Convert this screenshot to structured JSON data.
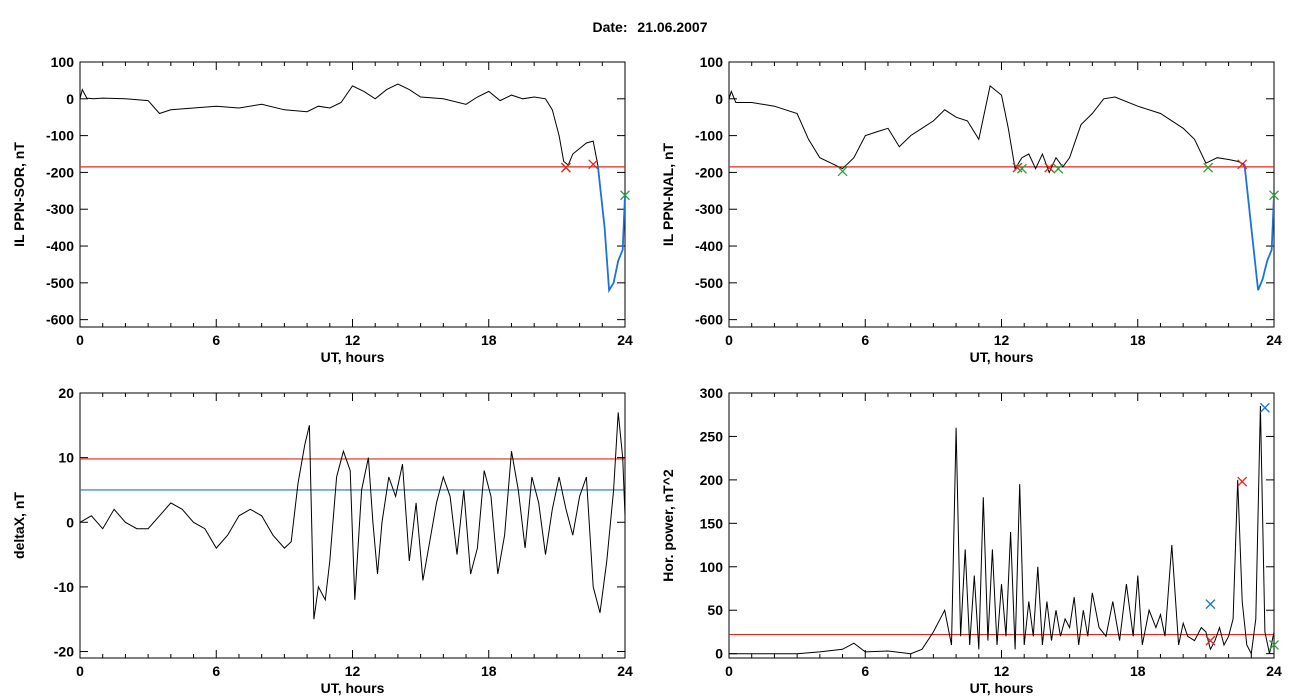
{
  "header": {
    "date_label": "Date:",
    "date_value": "21.06.2007"
  },
  "colors": {
    "red": "#e8261e",
    "blue": "#1a73d9",
    "green": "#2aa33a",
    "black": "#000000"
  },
  "chart_data": [
    {
      "type": "line",
      "title": "",
      "xlabel": "UT, hours",
      "ylabel": "IL PPN-SOR, nT",
      "xlim": [
        0,
        24
      ],
      "ylim": [
        -620,
        100
      ],
      "xticks": [
        0,
        6,
        12,
        18,
        24
      ],
      "yticks": [
        100,
        0,
        -100,
        -200,
        -300,
        -400,
        -500,
        -600
      ],
      "threshold_lines": [
        {
          "y": -185,
          "color": "red"
        }
      ],
      "series": [
        {
          "color": "black",
          "x": [
            0,
            0.1,
            0.3,
            0.6,
            1,
            2,
            3,
            3.5,
            4,
            5,
            6,
            7,
            8,
            9,
            10,
            10.5,
            11,
            11.5,
            12,
            12.5,
            13,
            13.5,
            14,
            14.5,
            15,
            16,
            17,
            17.5,
            18,
            18.5,
            19,
            19.5,
            20,
            20.5,
            20.8,
            21.1,
            21.3,
            21.5,
            21.7,
            22,
            22.3,
            22.6,
            22.8
          ],
          "y": [
            0,
            25,
            2,
            0,
            2,
            0,
            -5,
            -40,
            -30,
            -25,
            -20,
            -25,
            -15,
            -30,
            -35,
            -20,
            -25,
            -10,
            35,
            20,
            0,
            25,
            40,
            25,
            5,
            0,
            -15,
            5,
            20,
            -5,
            10,
            0,
            5,
            0,
            -30,
            -100,
            -170,
            -180,
            -150,
            -135,
            -120,
            -115,
            -180
          ]
        }
      ],
      "highlight_segment": {
        "color": "blue",
        "x": [
          22.8,
          23.1,
          23.3,
          23.5,
          23.7,
          23.9,
          24
        ],
        "y": [
          -180,
          -350,
          -520,
          -500,
          -440,
          -410,
          -260
        ]
      },
      "markers": [
        {
          "x": 21.4,
          "y": -187,
          "color": "green"
        },
        {
          "x": 21.4,
          "y": -187,
          "color": "red"
        },
        {
          "x": 22.6,
          "y": -178,
          "color": "red"
        },
        {
          "x": 24,
          "y": -262,
          "color": "green"
        }
      ]
    },
    {
      "type": "line",
      "title": "",
      "xlabel": "UT, hours",
      "ylabel": "IL PPN-NAL, nT",
      "xlim": [
        0,
        24
      ],
      "ylim": [
        -620,
        100
      ],
      "xticks": [
        0,
        6,
        12,
        18,
        24
      ],
      "yticks": [
        100,
        0,
        -100,
        -200,
        -300,
        -400,
        -500,
        -600
      ],
      "threshold_lines": [
        {
          "y": -185,
          "color": "red"
        }
      ],
      "series": [
        {
          "color": "black",
          "x": [
            0,
            0.1,
            0.3,
            1,
            2,
            3,
            3.5,
            4,
            4.5,
            5,
            5.5,
            6,
            6.5,
            7,
            7.5,
            8,
            8.5,
            9,
            9.5,
            10,
            10.5,
            11,
            11.5,
            12,
            12.3,
            12.6,
            12.9,
            13.2,
            13.5,
            13.8,
            14.1,
            14.4,
            14.7,
            15,
            15.5,
            16,
            16.5,
            17,
            18,
            19,
            20,
            20.5,
            21,
            21.5,
            22,
            22.4,
            22.7
          ],
          "y": [
            0,
            20,
            -10,
            -10,
            -20,
            -40,
            -110,
            -160,
            -175,
            -190,
            -160,
            -100,
            -90,
            -80,
            -130,
            -100,
            -80,
            -60,
            -30,
            -50,
            -60,
            -110,
            35,
            10,
            -80,
            -190,
            -160,
            -150,
            -190,
            -150,
            -200,
            -160,
            -185,
            -160,
            -70,
            -40,
            0,
            5,
            -20,
            -40,
            -80,
            -110,
            -175,
            -160,
            -165,
            -170,
            -178
          ]
        }
      ],
      "highlight_segment": {
        "color": "blue",
        "x": [
          22.7,
          23.0,
          23.3,
          23.5,
          23.7,
          23.9,
          24
        ],
        "y": [
          -178,
          -350,
          -520,
          -490,
          -440,
          -410,
          -260
        ]
      },
      "markers": [
        {
          "x": 5.0,
          "y": -197,
          "color": "green"
        },
        {
          "x": 12.7,
          "y": -187,
          "color": "red"
        },
        {
          "x": 12.9,
          "y": -190,
          "color": "green"
        },
        {
          "x": 14.1,
          "y": -187,
          "color": "red"
        },
        {
          "x": 14.5,
          "y": -190,
          "color": "green"
        },
        {
          "x": 21.1,
          "y": -187,
          "color": "green"
        },
        {
          "x": 22.6,
          "y": -178,
          "color": "red"
        },
        {
          "x": 24,
          "y": -262,
          "color": "green"
        }
      ]
    },
    {
      "type": "line",
      "title": "",
      "xlabel": "UT, hours",
      "ylabel": "deltaX, nT",
      "xlim": [
        0,
        24
      ],
      "ylim": [
        -21,
        20
      ],
      "xticks": [
        0,
        6,
        12,
        18,
        24
      ],
      "yticks": [
        20,
        10,
        0,
        -10,
        -20
      ],
      "threshold_lines": [
        {
          "y": 9.8,
          "color": "red"
        },
        {
          "y": 5,
          "color": "blue"
        }
      ],
      "series": [
        {
          "color": "black",
          "x": [
            0,
            0.5,
            1,
            1.5,
            2,
            2.5,
            3,
            3.5,
            4,
            4.5,
            5,
            5.5,
            6,
            6.5,
            7,
            7.5,
            8,
            8.5,
            9,
            9.3,
            9.6,
            9.9,
            10.1,
            10.3,
            10.5,
            10.8,
            11,
            11.3,
            11.6,
            11.9,
            12.1,
            12.4,
            12.7,
            12.9,
            13.1,
            13.3,
            13.6,
            13.9,
            14.2,
            14.5,
            14.8,
            15.1,
            15.4,
            15.7,
            16,
            16.3,
            16.6,
            16.9,
            17.2,
            17.5,
            17.8,
            18.1,
            18.4,
            18.7,
            19,
            19.3,
            19.6,
            19.9,
            20.2,
            20.5,
            20.8,
            21.1,
            21.4,
            21.7,
            22,
            22.3,
            22.6,
            22.9,
            23.2,
            23.5,
            23.7,
            23.9,
            24
          ],
          "y": [
            0,
            1,
            -1,
            2,
            0,
            -1,
            -1,
            1,
            3,
            2,
            0,
            -1,
            -4,
            -2,
            1,
            2,
            1,
            -2,
            -4,
            -3,
            6,
            12,
            15,
            -15,
            -10,
            -12,
            -6,
            7,
            11,
            8,
            -12,
            5,
            10,
            0,
            -8,
            0,
            7,
            4,
            9,
            -6,
            3,
            -9,
            -3,
            3,
            7,
            4,
            -5,
            5,
            -8,
            -4,
            8,
            4,
            -8,
            -2,
            11,
            5,
            -4,
            7,
            3,
            -5,
            2,
            7,
            2,
            -2,
            4,
            7,
            -10,
            -14,
            -6,
            5,
            17,
            10,
            1
          ]
        }
      ],
      "markers": []
    },
    {
      "type": "line",
      "title": "",
      "xlabel": "UT, hours",
      "ylabel": "Hor. power, nT^2",
      "xlim": [
        0,
        24
      ],
      "ylim": [
        -5,
        300
      ],
      "xticks": [
        0,
        6,
        12,
        18,
        24
      ],
      "yticks": [
        300,
        250,
        200,
        150,
        100,
        50,
        0
      ],
      "threshold_lines": [
        {
          "y": 22,
          "color": "red"
        }
      ],
      "series": [
        {
          "color": "black",
          "x": [
            0,
            1,
            2,
            3,
            4,
            5,
            5.5,
            6,
            7,
            8,
            8.5,
            9,
            9.5,
            9.8,
            10,
            10.2,
            10.4,
            10.6,
            10.8,
            11,
            11.2,
            11.4,
            11.6,
            11.8,
            12,
            12.2,
            12.4,
            12.6,
            12.8,
            13,
            13.2,
            13.4,
            13.6,
            13.8,
            14,
            14.2,
            14.4,
            14.6,
            14.8,
            15,
            15.2,
            15.4,
            15.6,
            15.8,
            16,
            16.3,
            16.6,
            16.9,
            17.2,
            17.5,
            17.8,
            18,
            18.2,
            18.5,
            18.8,
            19,
            19.2,
            19.5,
            19.8,
            20,
            20.2,
            20.5,
            20.8,
            21,
            21.2,
            21.4,
            21.6,
            21.8,
            22,
            22.2,
            22.4,
            22.6,
            22.8,
            23,
            23.2,
            23.4,
            23.6,
            23.8,
            24
          ],
          "y": [
            0,
            0,
            0,
            0,
            2,
            5,
            12,
            2,
            3,
            0,
            5,
            25,
            50,
            10,
            260,
            20,
            120,
            10,
            90,
            5,
            180,
            15,
            120,
            10,
            80,
            20,
            140,
            5,
            195,
            10,
            60,
            20,
            100,
            10,
            60,
            15,
            50,
            20,
            40,
            30,
            65,
            10,
            50,
            20,
            70,
            30,
            20,
            60,
            15,
            80,
            20,
            90,
            10,
            50,
            30,
            45,
            20,
            125,
            10,
            35,
            20,
            15,
            30,
            25,
            5,
            15,
            30,
            10,
            20,
            40,
            200,
            60,
            10,
            0,
            40,
            285,
            25,
            0,
            25
          ]
        }
      ],
      "markers": [
        {
          "x": 21.2,
          "y": 57,
          "color": "blue"
        },
        {
          "x": 21.2,
          "y": 15,
          "color": "red"
        },
        {
          "x": 22.6,
          "y": 198,
          "color": "red"
        },
        {
          "x": 23.6,
          "y": 283,
          "color": "blue"
        },
        {
          "x": 24,
          "y": 10,
          "color": "green"
        }
      ]
    }
  ]
}
